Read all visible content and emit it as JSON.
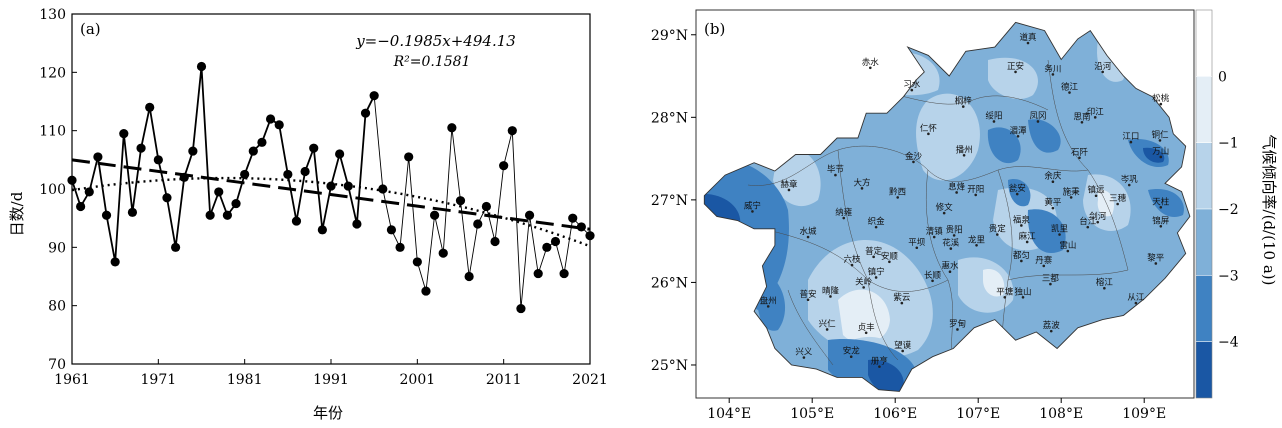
{
  "chart_data": [
    {
      "type": "line",
      "panel_label": "(a)",
      "xlabel": "年份",
      "ylabel": "日数/d",
      "xlim": [
        1961,
        2021
      ],
      "ylim": [
        70,
        130
      ],
      "x_ticks": [
        "1961",
        "1971",
        "1981",
        "1991",
        "2001",
        "2011",
        "2021"
      ],
      "y_ticks": [
        "70",
        "80",
        "90",
        "100",
        "110",
        "120",
        "130"
      ],
      "equation": "y=−0.1985x+494.13",
      "r2": "R²=0.1581",
      "x": [
        1961,
        1962,
        1963,
        1964,
        1965,
        1966,
        1967,
        1968,
        1969,
        1970,
        1971,
        1972,
        1973,
        1974,
        1975,
        1976,
        1977,
        1978,
        1979,
        1980,
        1981,
        1982,
        1983,
        1984,
        1985,
        1986,
        1987,
        1988,
        1989,
        1990,
        1991,
        1992,
        1993,
        1994,
        1995,
        1996,
        1997,
        1998,
        1999,
        2000,
        2001,
        2002,
        2003,
        2004,
        2005,
        2006,
        2007,
        2008,
        2009,
        2010,
        2011,
        2012,
        2013,
        2014,
        2015,
        2016,
        2017,
        2018,
        2019,
        2020,
        2021
      ],
      "series": [
        {
          "style": "line-markers",
          "values": [
            101.5,
            97,
            99.5,
            105.5,
            95.5,
            87.5,
            109.5,
            96,
            107,
            114,
            105,
            98.5,
            90,
            102,
            106.5,
            121,
            95.5,
            99.5,
            95.5,
            97.5,
            102.5,
            106.5,
            108,
            112,
            111,
            102.5,
            94.5,
            103,
            107,
            93,
            100.5,
            106,
            100.5,
            94,
            113,
            116,
            100,
            93,
            90,
            105.5,
            87.5,
            82.5,
            95.5,
            89,
            110.5,
            98,
            85,
            94,
            97,
            91,
            104,
            110,
            79.5,
            95.5,
            85.5,
            90,
            91,
            85.5,
            95,
            93.5,
            92
          ]
        },
        {
          "style": "dashed",
          "trend": [
            105.0,
            93.1
          ]
        },
        {
          "style": "dotted",
          "trend": [
            99.8,
            90.2
          ]
        }
      ]
    },
    {
      "type": "heatmap",
      "panel_label": "(b)",
      "x_ticks": [
        "104°E",
        "105°E",
        "106°E",
        "107°E",
        "108°E",
        "109°E"
      ],
      "y_ticks": [
        "25°N",
        "26°N",
        "27°N",
        "28°N",
        "29°N"
      ],
      "colorbar_label": "气候倾向率/(d/(10 a))",
      "colorbar_ticks": [
        "0",
        "−1",
        "−2",
        "−3",
        "−4"
      ],
      "colors": [
        "#e4eef6",
        "#b7d3ea",
        "#7fb0d8",
        "#3f82c2",
        "#1a57a4"
      ],
      "cities": [
        {
          "name": "道真",
          "lon": 107.6,
          "lat": 28.9
        },
        {
          "name": "赤水",
          "lon": 105.7,
          "lat": 28.6
        },
        {
          "name": "正安",
          "lon": 107.45,
          "lat": 28.55
        },
        {
          "name": "习水",
          "lon": 106.2,
          "lat": 28.33
        },
        {
          "name": "务川",
          "lon": 107.9,
          "lat": 28.52
        },
        {
          "name": "德江",
          "lon": 108.1,
          "lat": 28.3
        },
        {
          "name": "沿河",
          "lon": 108.5,
          "lat": 28.55
        },
        {
          "name": "桐梓",
          "lon": 106.82,
          "lat": 28.13
        },
        {
          "name": "绥阳",
          "lon": 107.19,
          "lat": 27.95
        },
        {
          "name": "凤冈",
          "lon": 107.72,
          "lat": 27.95
        },
        {
          "name": "思南",
          "lon": 108.25,
          "lat": 27.94
        },
        {
          "name": "印江",
          "lon": 108.41,
          "lat": 28.0
        },
        {
          "name": "松桃",
          "lon": 109.2,
          "lat": 28.16
        },
        {
          "name": "仁怀",
          "lon": 106.4,
          "lat": 27.8
        },
        {
          "name": "湄潭",
          "lon": 107.48,
          "lat": 27.77
        },
        {
          "name": "江口",
          "lon": 108.84,
          "lat": 27.7
        },
        {
          "name": "铜仁",
          "lon": 109.19,
          "lat": 27.72
        },
        {
          "name": "石阡",
          "lon": 108.22,
          "lat": 27.51
        },
        {
          "name": "万山",
          "lon": 109.2,
          "lat": 27.52
        },
        {
          "name": "金沙",
          "lon": 106.22,
          "lat": 27.46
        },
        {
          "name": "播州",
          "lon": 106.83,
          "lat": 27.54
        },
        {
          "name": "毕节",
          "lon": 105.28,
          "lat": 27.3
        },
        {
          "name": "大方",
          "lon": 105.6,
          "lat": 27.14
        },
        {
          "name": "余庆",
          "lon": 107.9,
          "lat": 27.22
        },
        {
          "name": "岑巩",
          "lon": 108.82,
          "lat": 27.18
        },
        {
          "name": "赫章",
          "lon": 104.72,
          "lat": 27.12
        },
        {
          "name": "黔西",
          "lon": 106.03,
          "lat": 27.03
        },
        {
          "name": "息烽",
          "lon": 106.74,
          "lat": 27.09
        },
        {
          "name": "开阳",
          "lon": 106.97,
          "lat": 27.06
        },
        {
          "name": "瓮安",
          "lon": 107.47,
          "lat": 27.07
        },
        {
          "name": "施秉",
          "lon": 108.12,
          "lat": 27.03
        },
        {
          "name": "镇远",
          "lon": 108.42,
          "lat": 27.05
        },
        {
          "name": "三穗",
          "lon": 108.68,
          "lat": 26.95
        },
        {
          "name": "天柱",
          "lon": 109.2,
          "lat": 26.91
        },
        {
          "name": "威宁",
          "lon": 104.28,
          "lat": 26.86
        },
        {
          "name": "纳雍",
          "lon": 105.38,
          "lat": 26.78
        },
        {
          "name": "织金",
          "lon": 105.77,
          "lat": 26.67
        },
        {
          "name": "修文",
          "lon": 106.59,
          "lat": 26.84
        },
        {
          "name": "黄平",
          "lon": 107.9,
          "lat": 26.9
        },
        {
          "name": "福泉",
          "lon": 107.52,
          "lat": 26.69
        },
        {
          "name": "凯里",
          "lon": 107.98,
          "lat": 26.58
        },
        {
          "name": "台江",
          "lon": 108.32,
          "lat": 26.67
        },
        {
          "name": "剑河",
          "lon": 108.44,
          "lat": 26.73
        },
        {
          "name": "锦屏",
          "lon": 109.2,
          "lat": 26.68
        },
        {
          "name": "水城",
          "lon": 104.95,
          "lat": 26.55
        },
        {
          "name": "清镇",
          "lon": 106.47,
          "lat": 26.55
        },
        {
          "name": "贵阳",
          "lon": 106.71,
          "lat": 26.57
        },
        {
          "name": "平坝",
          "lon": 106.26,
          "lat": 26.42
        },
        {
          "name": "花溪",
          "lon": 106.67,
          "lat": 26.41
        },
        {
          "name": "龙里",
          "lon": 106.98,
          "lat": 26.45
        },
        {
          "name": "贵定",
          "lon": 107.23,
          "lat": 26.58
        },
        {
          "name": "麻江",
          "lon": 107.59,
          "lat": 26.49
        },
        {
          "name": "雷山",
          "lon": 108.08,
          "lat": 26.38
        },
        {
          "name": "黎平",
          "lon": 109.14,
          "lat": 26.23
        },
        {
          "name": "六枝",
          "lon": 105.48,
          "lat": 26.21
        },
        {
          "name": "普定",
          "lon": 105.74,
          "lat": 26.31
        },
        {
          "name": "安顺",
          "lon": 105.93,
          "lat": 26.25
        },
        {
          "name": "镇宁",
          "lon": 105.77,
          "lat": 26.06
        },
        {
          "name": "长顺",
          "lon": 106.45,
          "lat": 26.02
        },
        {
          "name": "惠水",
          "lon": 106.66,
          "lat": 26.13
        },
        {
          "name": "丹寨",
          "lon": 107.79,
          "lat": 26.2
        },
        {
          "name": "都匀",
          "lon": 107.52,
          "lat": 26.26
        },
        {
          "name": "三都",
          "lon": 107.87,
          "lat": 25.98
        },
        {
          "name": "榕江",
          "lon": 108.52,
          "lat": 25.93
        },
        {
          "name": "从江",
          "lon": 108.9,
          "lat": 25.75
        },
        {
          "name": "盘州",
          "lon": 104.47,
          "lat": 25.71
        },
        {
          "name": "普安",
          "lon": 104.95,
          "lat": 25.79
        },
        {
          "name": "晴隆",
          "lon": 105.22,
          "lat": 25.83
        },
        {
          "name": "关岭",
          "lon": 105.62,
          "lat": 25.94
        },
        {
          "name": "紫云",
          "lon": 106.08,
          "lat": 25.75
        },
        {
          "name": "平塘",
          "lon": 107.32,
          "lat": 25.82
        },
        {
          "name": "独山",
          "lon": 107.54,
          "lat": 25.82
        },
        {
          "name": "兴仁",
          "lon": 105.18,
          "lat": 25.43
        },
        {
          "name": "贞丰",
          "lon": 105.65,
          "lat": 25.39
        },
        {
          "name": "罗甸",
          "lon": 106.75,
          "lat": 25.43
        },
        {
          "name": "荔波",
          "lon": 107.88,
          "lat": 25.41
        },
        {
          "name": "兴义",
          "lon": 104.9,
          "lat": 25.09
        },
        {
          "name": "安龙",
          "lon": 105.47,
          "lat": 25.1
        },
        {
          "name": "望谟",
          "lon": 106.09,
          "lat": 25.17
        },
        {
          "name": "册亨",
          "lon": 105.81,
          "lat": 24.98
        }
      ]
    }
  ]
}
